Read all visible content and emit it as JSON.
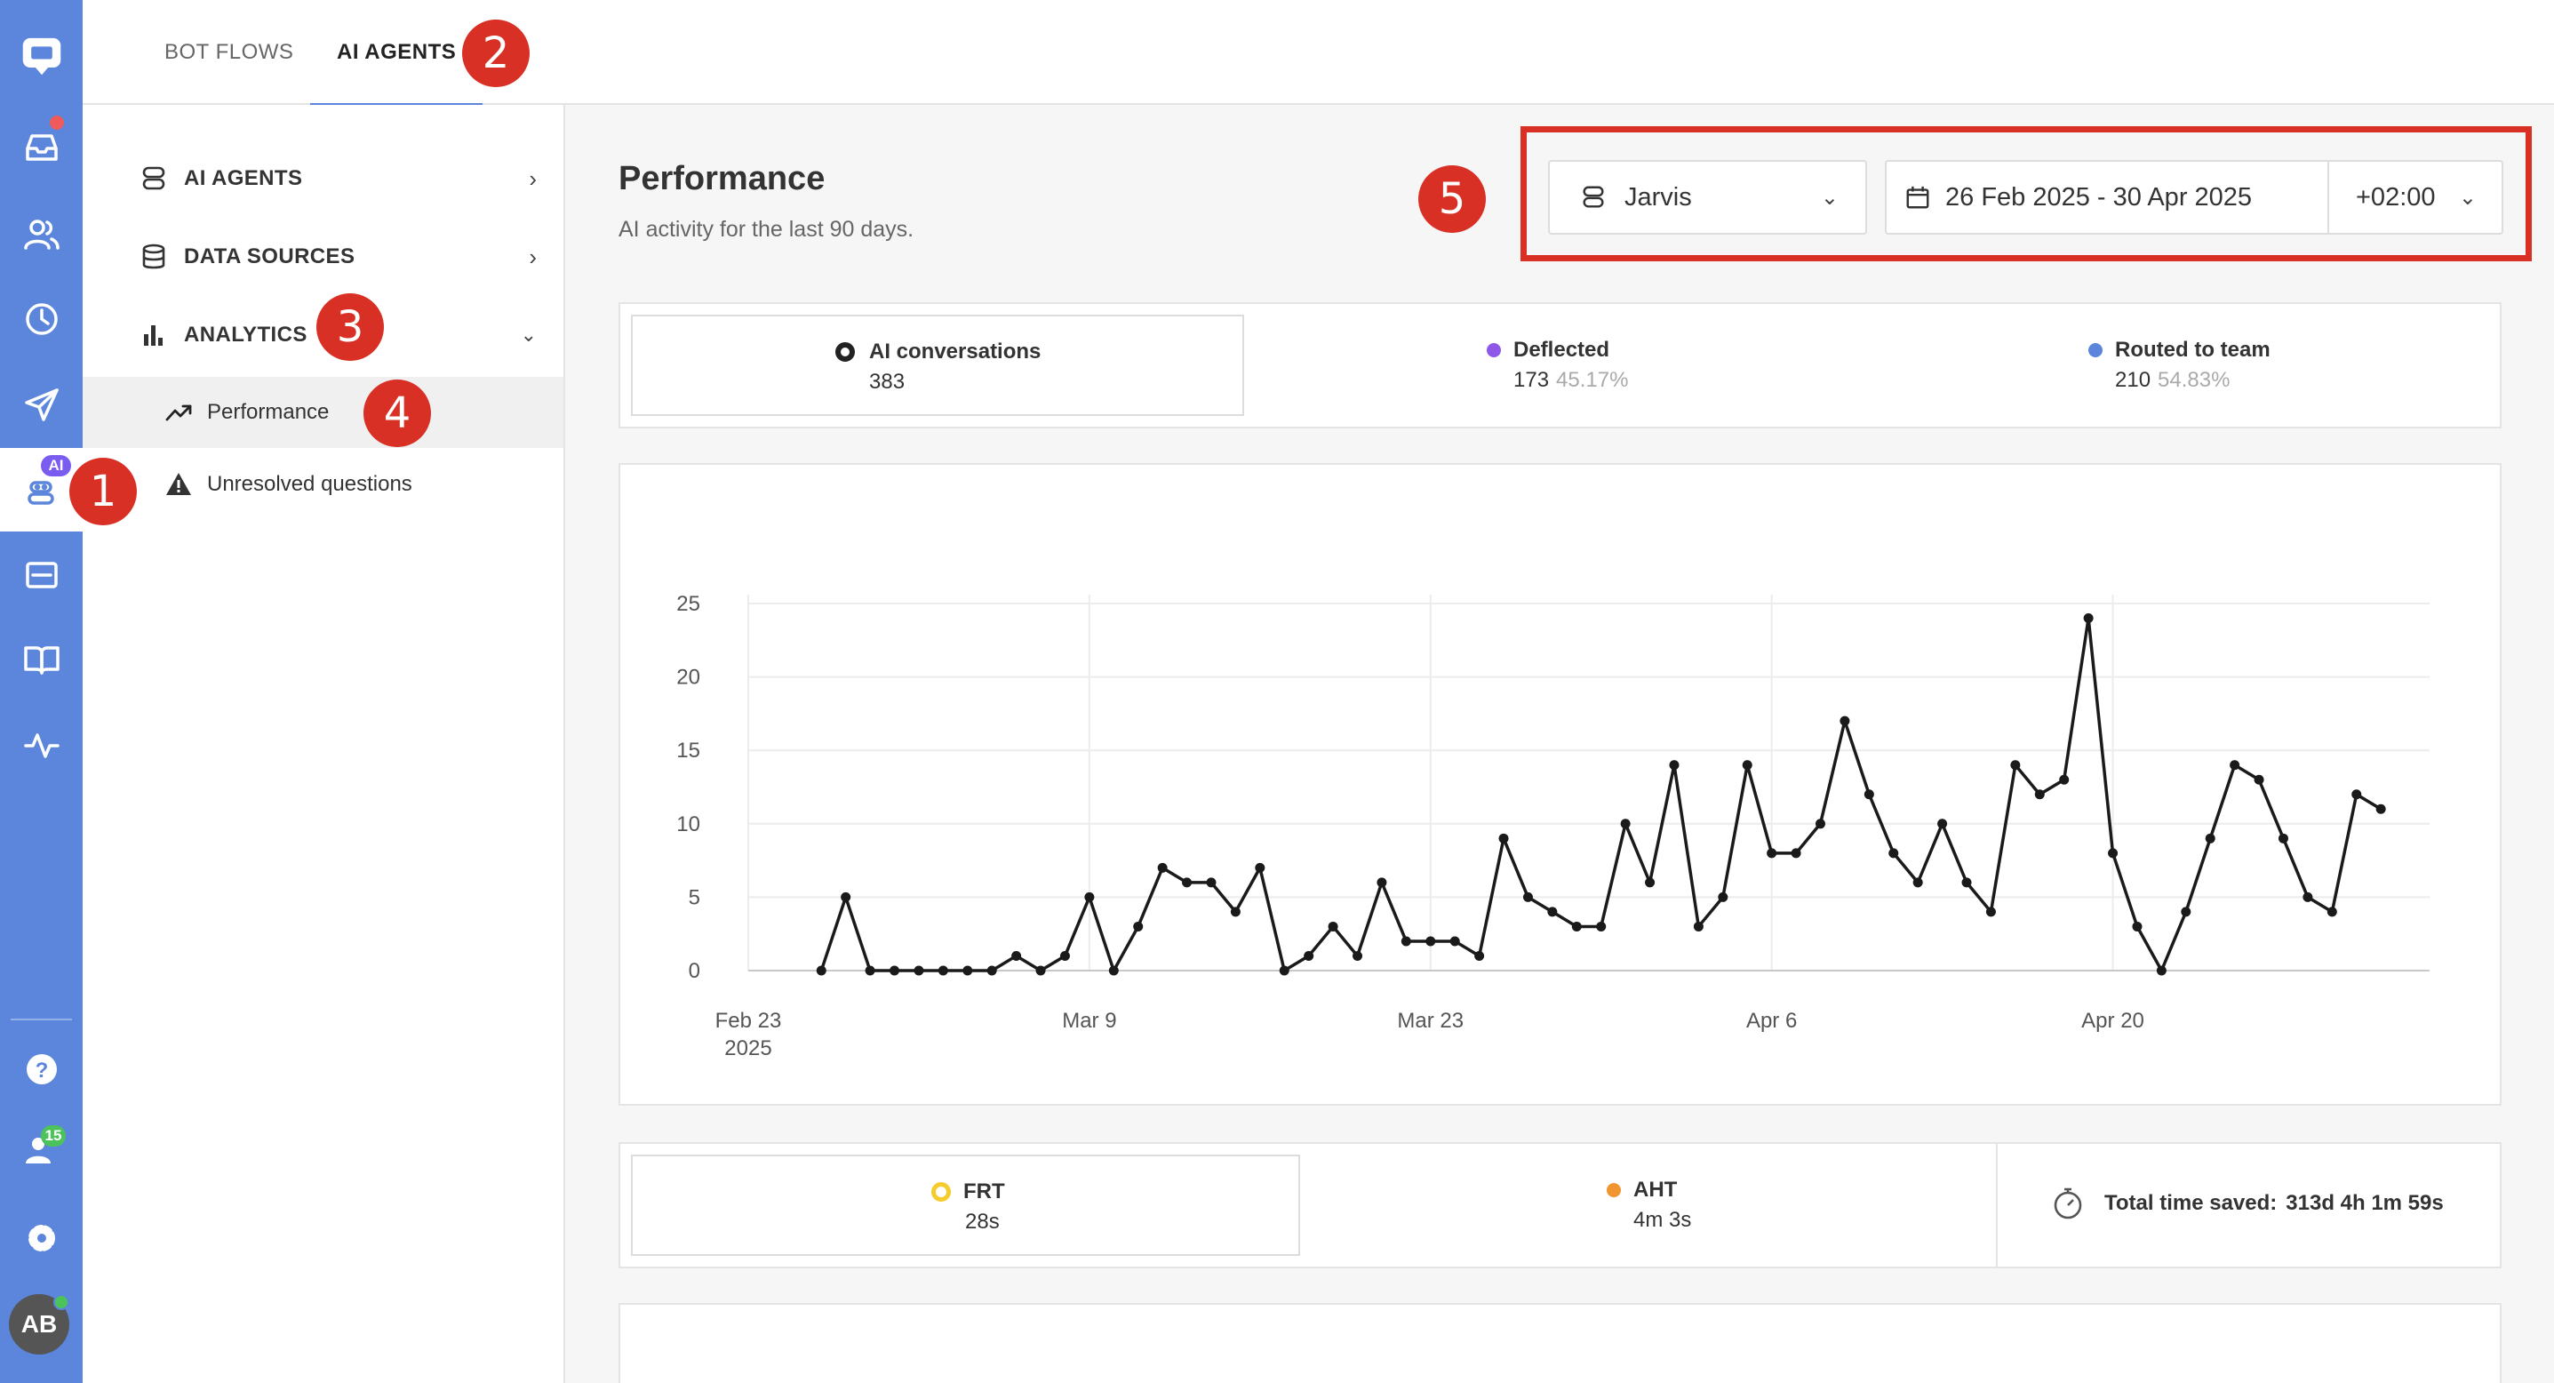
{
  "topbar": {
    "tabs": [
      {
        "label": "BOT FLOWS",
        "active": false
      },
      {
        "label": "AI AGENTS",
        "active": true
      }
    ]
  },
  "rail": {
    "icons": [
      "chat-logo-icon",
      "inbox-icon",
      "contacts-icon",
      "history-icon",
      "send-icon",
      "ai-agent-icon",
      "widget-icon",
      "knowledge-book-icon",
      "activity-icon",
      "help-icon",
      "team-icon",
      "settings-icon",
      "avatar"
    ],
    "ai_badge": "AI",
    "team_badge": "15",
    "avatar_initials": "AB",
    "colors": {
      "rail": "#5b86dc",
      "notification": "#ef5b5b",
      "online": "#4cc35a"
    }
  },
  "subnav": {
    "ai_agents": "AI AGENTS",
    "data_sources": "DATA SOURCES",
    "analytics": "ANALYTICS",
    "performance": "Performance",
    "unresolved": "Unresolved questions"
  },
  "annotations": [
    "1",
    "2",
    "3",
    "4",
    "5"
  ],
  "main": {
    "title": "Performance",
    "subtitle": "AI activity for the last 90 days.",
    "agent_select": "Jarvis",
    "date_range": "26 Feb 2025 - 30 Apr 2025",
    "timezone": "+02:00"
  },
  "stats": {
    "ai_conversations": {
      "label": "AI conversations",
      "value": "383",
      "color": "#222222"
    },
    "deflected": {
      "label": "Deflected",
      "value": "173",
      "pct": "45.17%",
      "color": "#8e57e8"
    },
    "routed": {
      "label": "Routed to team",
      "value": "210",
      "pct": "54.83%",
      "color": "#5b86dc"
    }
  },
  "times": {
    "frt": {
      "label": "FRT",
      "value": "28s",
      "color": "#f6cb2c"
    },
    "aht": {
      "label": "AHT",
      "value": "4m 3s",
      "color": "#f0952f"
    },
    "saved_label": "Total time saved:",
    "saved_value": "313d 4h 1m 59s"
  },
  "chart_data": {
    "type": "line",
    "x_start": "2025-02-26",
    "x_end": "2025-04-30",
    "values": [
      0,
      5,
      0,
      0,
      0,
      0,
      0,
      0,
      1,
      0,
      1,
      5,
      0,
      3,
      7,
      6,
      6,
      4,
      7,
      0,
      1,
      3,
      1,
      6,
      2,
      2,
      2,
      1,
      9,
      5,
      4,
      3,
      3,
      10,
      6,
      14,
      3,
      5,
      14,
      8,
      8,
      10,
      17,
      12,
      8,
      6,
      10,
      6,
      4,
      14,
      12,
      13,
      24,
      8,
      3,
      0,
      4,
      9,
      14,
      13,
      9,
      5,
      4,
      12,
      11
    ],
    "ylim": [
      0,
      25
    ],
    "yticks": [
      0,
      5,
      10,
      15,
      20,
      25
    ],
    "xticks": [
      {
        "label": "Feb 23",
        "sub": "2025",
        "date": "2025-02-23"
      },
      {
        "label": "Mar 9",
        "sub": "",
        "date": "2025-03-09"
      },
      {
        "label": "Mar 23",
        "sub": "",
        "date": "2025-03-23"
      },
      {
        "label": "Apr 6",
        "sub": "",
        "date": "2025-04-06"
      },
      {
        "label": "Apr 20",
        "sub": "",
        "date": "2025-04-20"
      }
    ],
    "x_axis_end": "2025-05-03",
    "grid": true,
    "line_color": "#1a1a1a"
  }
}
